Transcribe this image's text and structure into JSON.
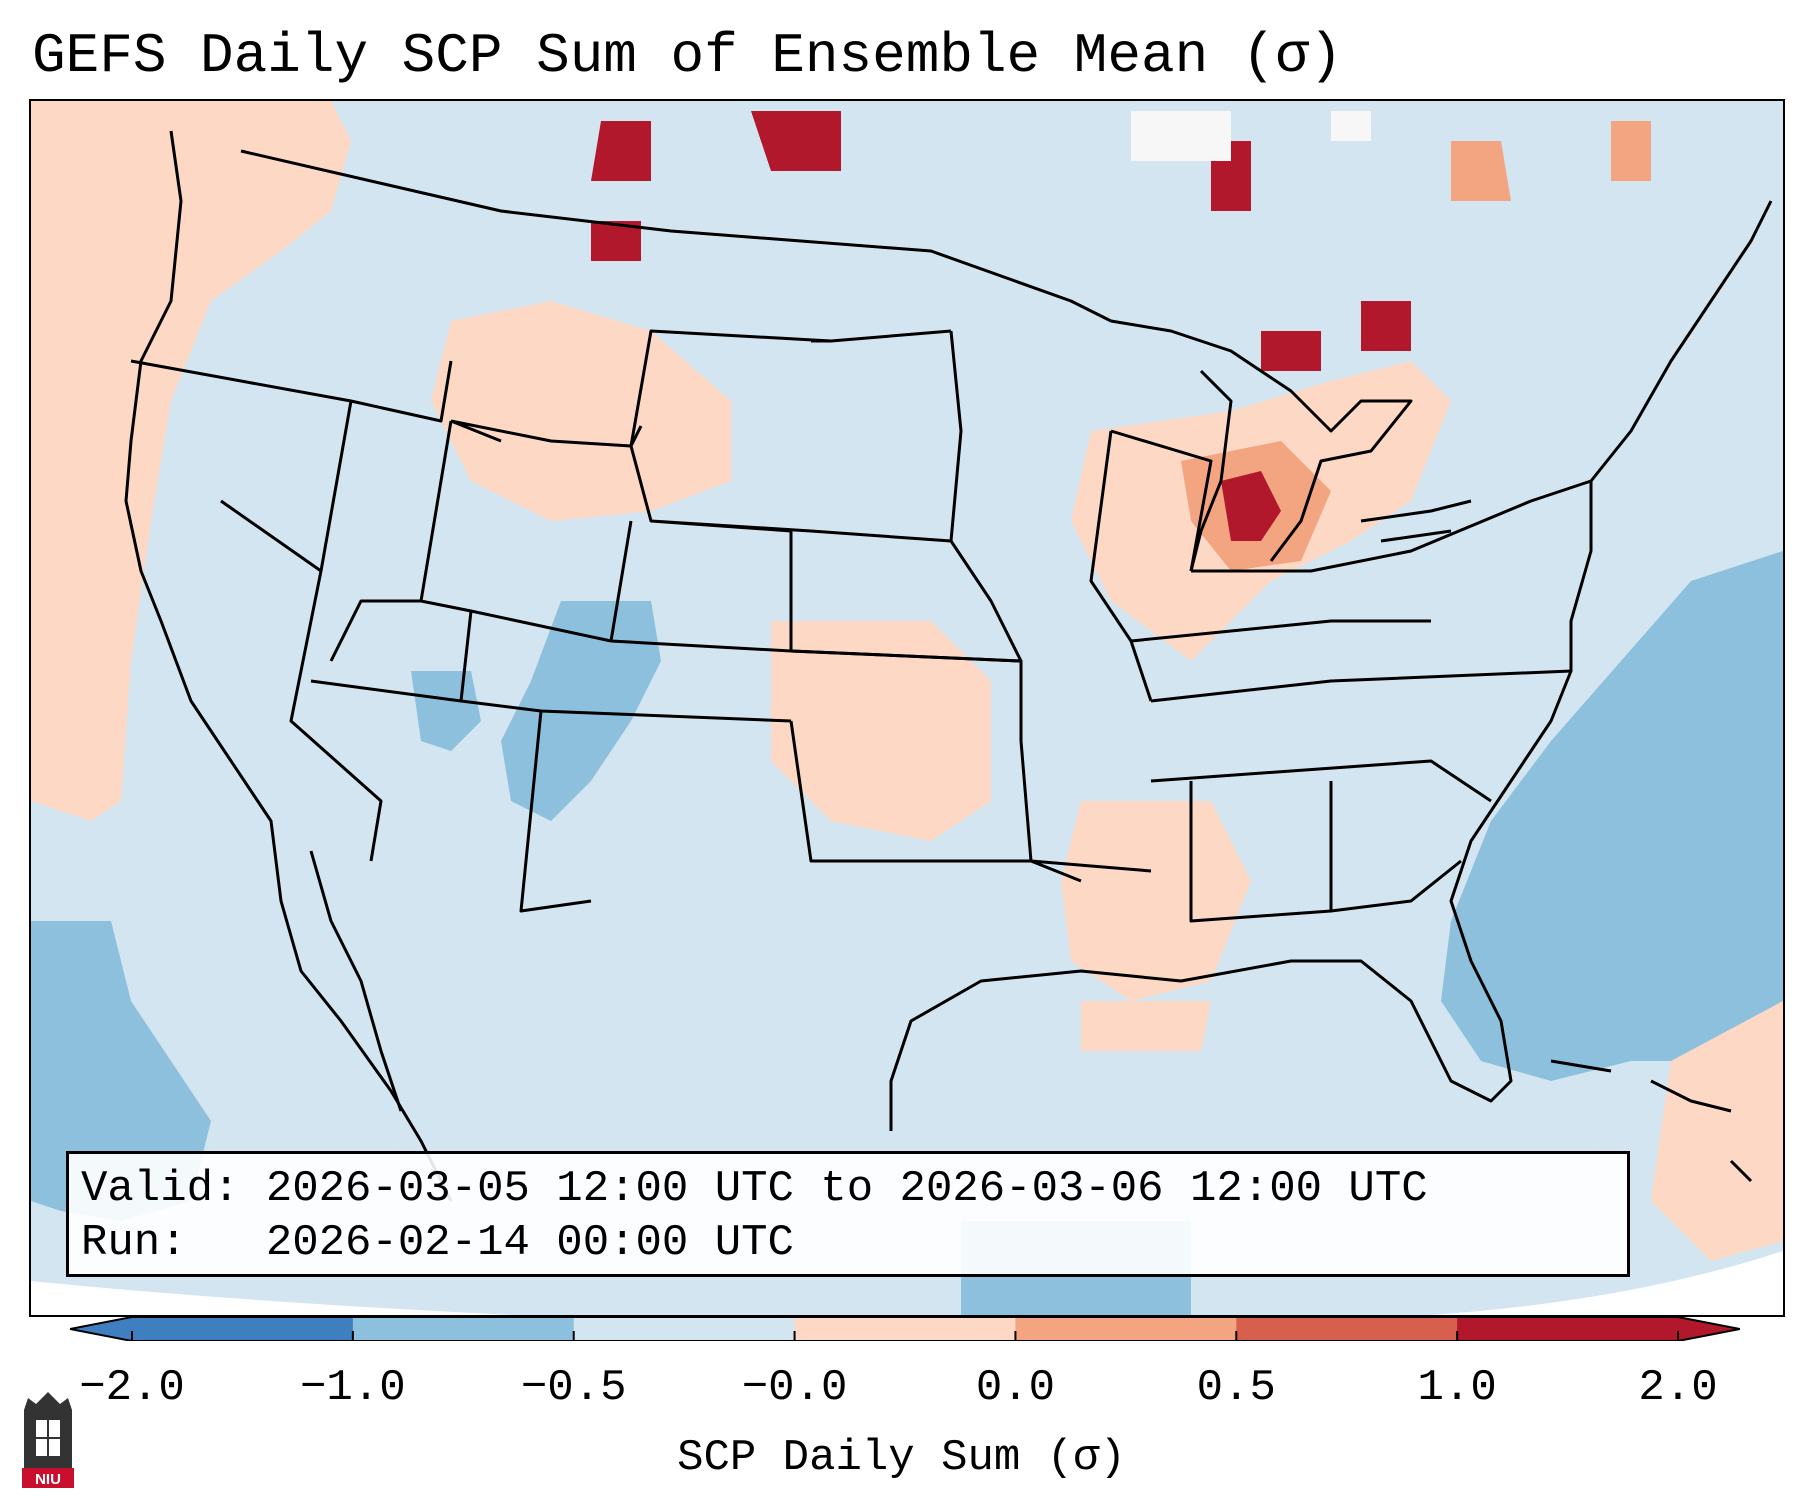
{
  "title": "GEFS Daily SCP Sum of Ensemble Mean (σ)",
  "info": {
    "valid_label": "Valid:",
    "valid_value": "2026-03-05 12:00 UTC to 2026-03-06 12:00 UTC",
    "run_label": "Run:",
    "run_value": "2026-02-14 00:00 UTC"
  },
  "colorbar": {
    "label": "SCP Daily Sum (σ)",
    "ticks": [
      "−2.0",
      "−1.0",
      "−0.5",
      "−0.0",
      "0.0",
      "0.5",
      "1.0",
      "2.0"
    ],
    "colors": [
      "#3f7fbf",
      "#8dc0dd",
      "#d2e5f0",
      "#f7f7f7",
      "#fdd8c4",
      "#f3a582",
      "#d6604d",
      "#b2182b"
    ],
    "extend": "both"
  },
  "map": {
    "region": "CONUS",
    "background_color": "#d2e5f0",
    "positive_anomaly_areas": [
      "Great Lakes",
      "Michigan",
      "Ontario",
      "Montana",
      "Saskatchewan",
      "Pacific coast",
      "Oklahoma",
      "Kansas",
      "Gulf coast",
      "Caribbean"
    ],
    "negative_anomaly_areas": [
      "Atlantic Ocean",
      "Colorado",
      "New Mexico",
      "Arizona",
      "Pacific Ocean"
    ]
  },
  "logo": {
    "text": "NIU",
    "color": "#c8102e"
  }
}
